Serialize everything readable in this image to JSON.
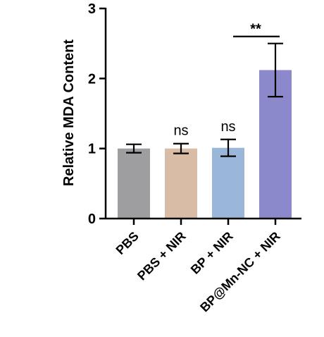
{
  "chart_data": {
    "type": "bar",
    "title": "",
    "xlabel": "",
    "ylabel": "Relative MDA Content",
    "ylim": [
      0,
      3
    ],
    "yticks": [
      0,
      1,
      2,
      3
    ],
    "categories": [
      "PBS",
      "PBS + NIR",
      "BP + NIR",
      "BP@Mn-NC + NIR"
    ],
    "values": [
      1.0,
      1.0,
      1.01,
      2.12
    ],
    "errors": [
      0.06,
      0.07,
      0.12,
      0.38
    ],
    "colors": [
      "#9e9ea0",
      "#d9bca5",
      "#9ab6d8",
      "#8b88cc"
    ],
    "annotations": [
      {
        "label": "ns",
        "category_index": 1
      },
      {
        "label": "ns",
        "category_index": 2
      },
      {
        "label": "**",
        "category_index": 3,
        "bracket": true,
        "bracket_y": 2.6
      }
    ],
    "grid": false,
    "legend": "none"
  }
}
